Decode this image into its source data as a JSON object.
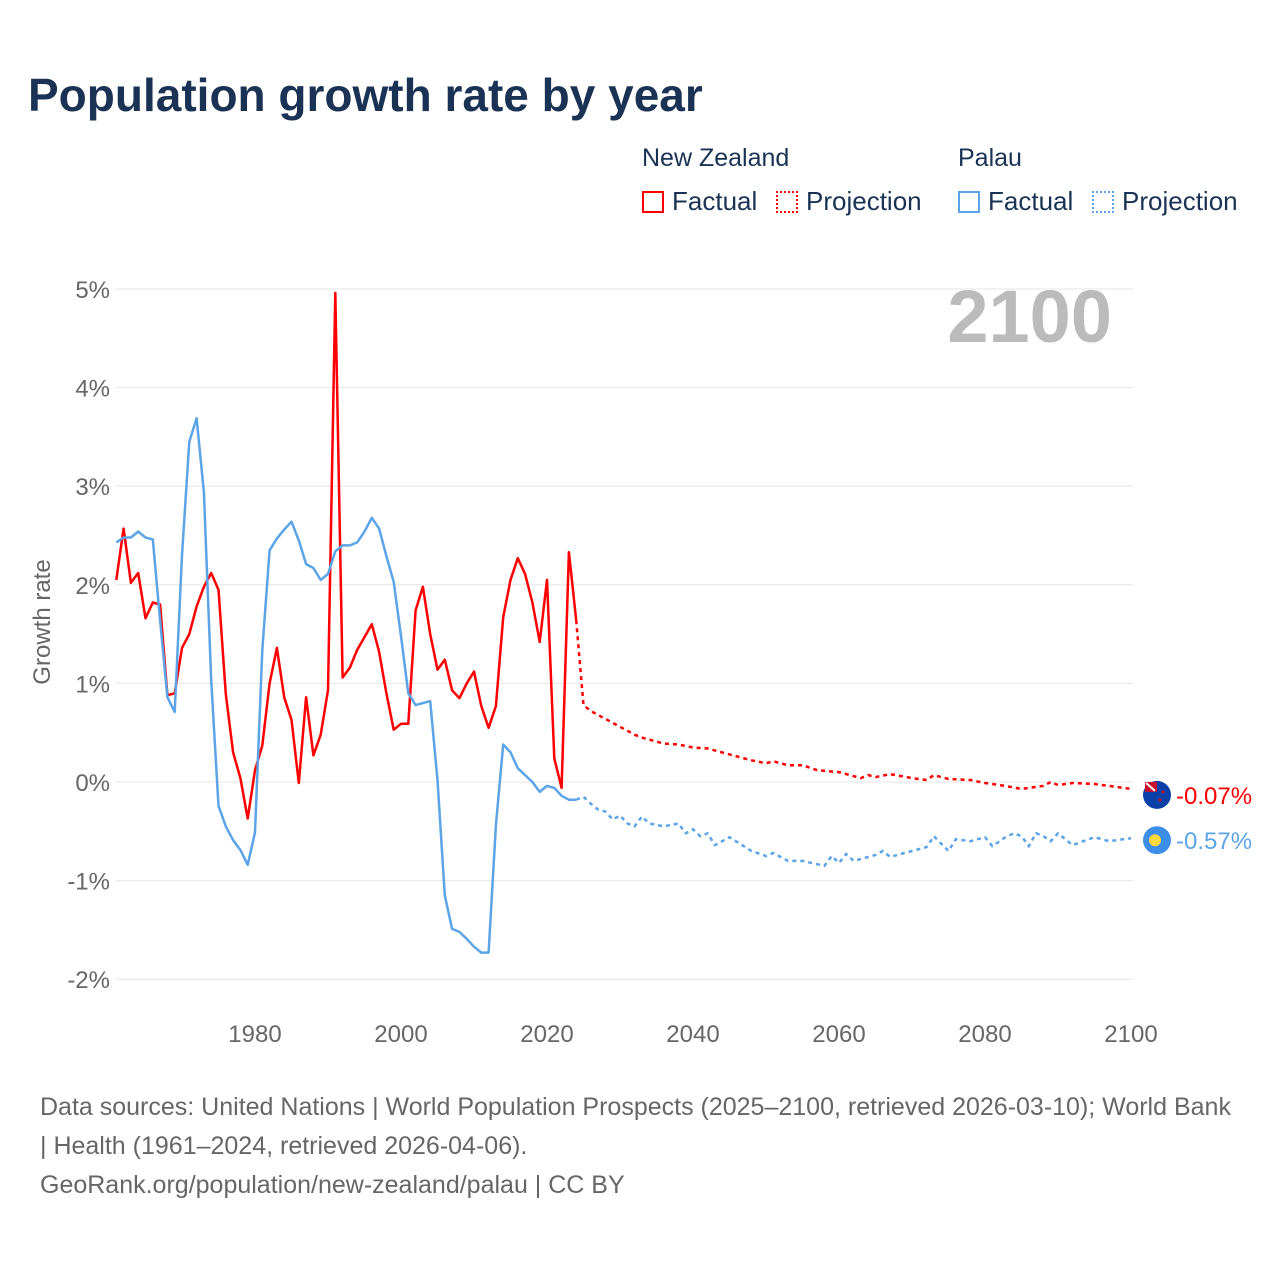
{
  "title": "Population growth rate by year",
  "legend": {
    "groups": [
      {
        "name": "New Zealand",
        "color": "#ff0000",
        "factual_label": "Factual",
        "projection_label": "Projection"
      },
      {
        "name": "Palau",
        "color": "#5ba4e8",
        "factual_label": "Factual",
        "projection_label": "Projection"
      }
    ]
  },
  "chart_data": {
    "type": "line",
    "title": "Population growth rate by year",
    "xlabel": "",
    "ylabel": "Growth rate",
    "xlim": [
      1961,
      2100
    ],
    "ylim": [
      -2.3,
      5.1
    ],
    "x_ticks": [
      1980,
      2000,
      2020,
      2040,
      2060,
      2080,
      2100
    ],
    "x_tick_labels": [
      "1980",
      "2000",
      "2020",
      "2040",
      "2060",
      "2080",
      "2100"
    ],
    "y_ticks": [
      -2,
      -1,
      0,
      1,
      2,
      3,
      4,
      5
    ],
    "y_tick_labels": [
      "-2%",
      "-1%",
      "0%",
      "1%",
      "2%",
      "3%",
      "4%",
      "5%"
    ],
    "grid": true,
    "year_label": "2100",
    "series": [
      {
        "name": "New Zealand",
        "color": "#ff0000",
        "end_label": "-0.07%",
        "factual": {
          "x": [
            1961,
            1962,
            1963,
            1964,
            1965,
            1966,
            1967,
            1968,
            1969,
            1970,
            1971,
            1972,
            1973,
            1974,
            1975,
            1976,
            1977,
            1978,
            1979,
            1980,
            1981,
            1982,
            1983,
            1984,
            1985,
            1986,
            1987,
            1988,
            1989,
            1990,
            1991,
            1992,
            1993,
            1994,
            1995,
            1996,
            1997,
            1998,
            1999,
            2000,
            2001,
            2002,
            2003,
            2004,
            2005,
            2006,
            2007,
            2008,
            2009,
            2010,
            2011,
            2012,
            2013,
            2014,
            2015,
            2016,
            2017,
            2018,
            2019,
            2020,
            2021,
            2022,
            2023,
            2024
          ],
          "y": [
            2.05,
            2.57,
            2.02,
            2.12,
            1.66,
            1.82,
            1.8,
            0.88,
            0.9,
            1.36,
            1.5,
            1.78,
            1.98,
            2.12,
            1.95,
            0.89,
            0.3,
            0.04,
            -0.37,
            0.12,
            0.37,
            1.0,
            1.36,
            0.86,
            0.63,
            -0.01,
            0.86,
            0.27,
            0.48,
            0.93,
            4.96,
            1.06,
            1.16,
            1.34,
            1.47,
            1.6,
            1.32,
            0.9,
            0.53,
            0.59,
            0.59,
            1.74,
            1.98,
            1.5,
            1.14,
            1.24,
            0.93,
            0.85,
            1.0,
            1.12,
            0.77,
            0.55,
            0.77,
            1.67,
            2.05,
            2.27,
            2.11,
            1.82,
            1.42,
            2.05,
            0.24,
            -0.06,
            2.33,
            1.64
          ]
        },
        "projection": {
          "x": [
            2024,
            2025,
            2026,
            2027,
            2028,
            2029,
            2030,
            2031,
            2032,
            2033,
            2034,
            2035,
            2036,
            2038,
            2040,
            2042,
            2045,
            2048,
            2050,
            2051,
            2053,
            2055,
            2057,
            2060,
            2063,
            2064,
            2065,
            2067,
            2070,
            2072,
            2073,
            2075,
            2078,
            2080,
            2082,
            2085,
            2088,
            2089,
            2090,
            2092,
            2095,
            2098,
            2100
          ],
          "y": [
            1.64,
            0.78,
            0.72,
            0.68,
            0.64,
            0.6,
            0.56,
            0.52,
            0.48,
            0.45,
            0.43,
            0.41,
            0.39,
            0.38,
            0.35,
            0.34,
            0.28,
            0.22,
            0.19,
            0.21,
            0.17,
            0.17,
            0.12,
            0.1,
            0.04,
            0.07,
            0.05,
            0.08,
            0.04,
            0.02,
            0.07,
            0.03,
            0.02,
            -0.01,
            -0.03,
            -0.07,
            -0.04,
            0.0,
            -0.03,
            -0.01,
            -0.02,
            -0.05,
            -0.07
          ]
        }
      },
      {
        "name": "Palau",
        "color": "#5ba4e8",
        "end_label": "-0.57%",
        "factual": {
          "x": [
            1961,
            1962,
            1963,
            1964,
            1965,
            1966,
            1967,
            1968,
            1969,
            1970,
            1971,
            1972,
            1973,
            1974,
            1975,
            1976,
            1977,
            1978,
            1979,
            1980,
            1981,
            1982,
            1983,
            1984,
            1985,
            1986,
            1987,
            1988,
            1989,
            1990,
            1991,
            1992,
            1993,
            1994,
            1995,
            1996,
            1997,
            1998,
            1999,
            2000,
            2001,
            2002,
            2003,
            2004,
            2005,
            2006,
            2007,
            2008,
            2009,
            2010,
            2011,
            2012,
            2013,
            2014,
            2015,
            2016,
            2017,
            2018,
            2019,
            2020,
            2021,
            2022,
            2023,
            2024
          ],
          "y": [
            2.43,
            2.48,
            2.48,
            2.54,
            2.48,
            2.46,
            1.64,
            0.86,
            0.71,
            2.3,
            3.45,
            3.69,
            2.94,
            1.03,
            -0.24,
            -0.45,
            -0.59,
            -0.69,
            -0.84,
            -0.51,
            1.34,
            2.35,
            2.47,
            2.56,
            2.64,
            2.45,
            2.21,
            2.17,
            2.05,
            2.11,
            2.34,
            2.4,
            2.4,
            2.43,
            2.54,
            2.68,
            2.57,
            2.29,
            2.03,
            1.48,
            0.9,
            0.78,
            0.8,
            0.82,
            0.02,
            -1.15,
            -1.49,
            -1.52,
            -1.59,
            -1.67,
            -1.73,
            -1.73,
            -0.44,
            0.38,
            0.3,
            0.14,
            0.07,
            0.0,
            -0.1,
            -0.04,
            -0.06,
            -0.14,
            -0.18,
            -0.18
          ]
        },
        "projection": {
          "x": [
            2024,
            2025,
            2026,
            2027,
            2028,
            2029,
            2030,
            2031,
            2032,
            2033,
            2034,
            2036,
            2038,
            2039,
            2040,
            2041,
            2042,
            2043,
            2044,
            2045,
            2048,
            2050,
            2051,
            2053,
            2055,
            2058,
            2059,
            2060,
            2061,
            2062,
            2065,
            2066,
            2067,
            2070,
            2072,
            2073,
            2075,
            2076,
            2078,
            2080,
            2081,
            2083,
            2084,
            2085,
            2086,
            2087,
            2088,
            2089,
            2090,
            2092,
            2095,
            2097,
            2100
          ],
          "y": [
            -0.18,
            -0.15,
            -0.22,
            -0.28,
            -0.3,
            -0.38,
            -0.34,
            -0.42,
            -0.45,
            -0.35,
            -0.42,
            -0.45,
            -0.42,
            -0.52,
            -0.48,
            -0.55,
            -0.52,
            -0.64,
            -0.6,
            -0.56,
            -0.7,
            -0.75,
            -0.72,
            -0.8,
            -0.8,
            -0.85,
            -0.75,
            -0.82,
            -0.73,
            -0.8,
            -0.74,
            -0.7,
            -0.76,
            -0.7,
            -0.66,
            -0.55,
            -0.7,
            -0.58,
            -0.6,
            -0.56,
            -0.65,
            -0.55,
            -0.52,
            -0.55,
            -0.65,
            -0.52,
            -0.55,
            -0.6,
            -0.52,
            -0.64,
            -0.56,
            -0.6,
            -0.57
          ]
        }
      }
    ]
  },
  "footer": {
    "sources": "Data sources: United Nations | World Population Prospects (2025–2100, retrieved 2026-03-10); World Bank | Health (1961–2024, retrieved 2026-04-06).",
    "credit": "GeoRank.org/population/new-zealand/palau | CC BY"
  }
}
